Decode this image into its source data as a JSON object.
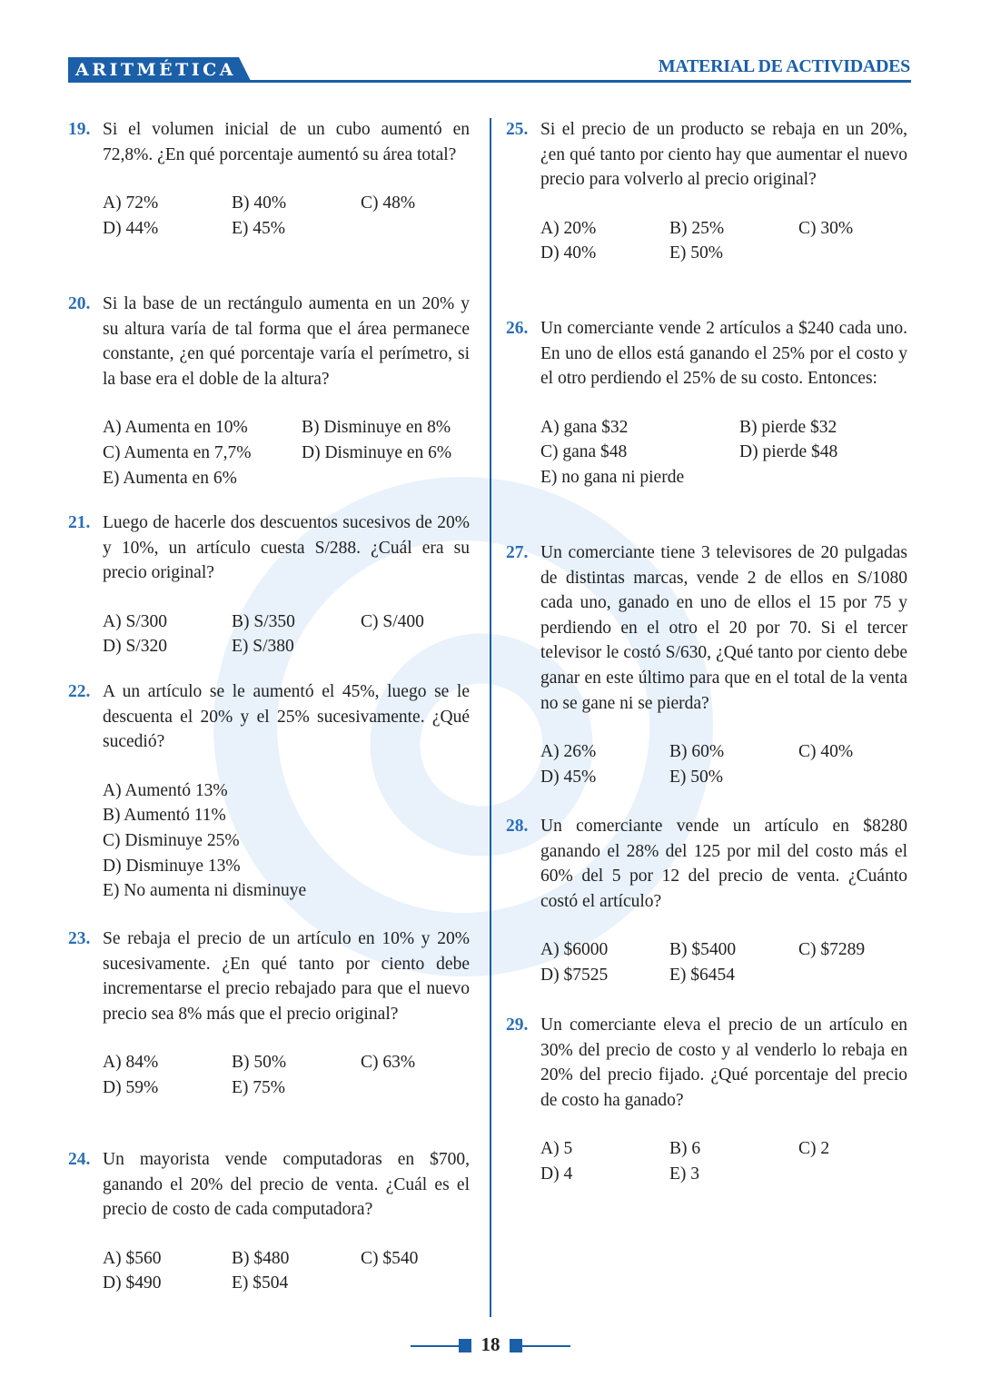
{
  "header": {
    "subject": "ARITMÉTICA",
    "section": "MATERIAL DE ACTIVIDADES"
  },
  "footer": {
    "page": "18"
  },
  "colors": {
    "accent": "#1b5fa8",
    "number": "#2a6fb5"
  },
  "left": [
    {
      "num": "19.",
      "text": "Si el volumen inicial de un cubo aumentó en 72,8%. ¿En qué porcentaje aumentó su área total?",
      "layout": "c3",
      "options": [
        "A) 72%",
        "B) 40%",
        "C) 48%",
        "D) 44%",
        "E) 45%"
      ]
    },
    {
      "num": "20.",
      "text": "Si la base de un rectángulo aumenta en un 20% y su altura varía de tal forma que el área permanece constante, ¿en qué porcentaje varía el perímetro, si la base era el doble de la altura?",
      "layout": "c2",
      "options": [
        "A) Aumenta en 10%",
        "B) Disminuye en 8%",
        "C) Aumenta en 7,7%",
        "D) Disminuye en 6%",
        "E) Aumenta en 6%"
      ]
    },
    {
      "num": "21.",
      "text": "Luego de hacerle dos descuentos sucesivos de 20% y 10%, un artículo cuesta S/288. ¿Cuál era su precio original?",
      "layout": "c3",
      "options": [
        "A) S/300",
        "B) S/350",
        "C) S/400",
        "D) S/320",
        "E) S/380"
      ]
    },
    {
      "num": "22.",
      "text": "A un artículo se le aumentó el 45%, luego se le descuenta el 20% y el 25% sucesivamente. ¿Qué sucedió?",
      "layout": "c1",
      "options": [
        "A) Aumentó 13%",
        "B) Aumentó 11%",
        "C) Disminuye 25%",
        "D) Disminuye 13%",
        "E) No aumenta ni disminuye"
      ]
    },
    {
      "num": "23.",
      "text": "Se rebaja el precio de un artículo en 10% y 20% sucesivamente. ¿En qué tanto por ciento debe incrementarse el precio rebajado para que el nuevo precio sea 8% más que el precio original?",
      "layout": "c3",
      "options": [
        "A) 84%",
        "B) 50%",
        "C) 63%",
        "D) 59%",
        "E) 75%"
      ]
    },
    {
      "num": "24.",
      "text": "Un mayorista vende computadoras en $700, ganando el 20% del precio de venta. ¿Cuál es el precio de costo de cada computadora?",
      "layout": "c3",
      "options": [
        "A) $560",
        "B) $480",
        "C) $540",
        "D) $490",
        "E) $504"
      ]
    }
  ],
  "right": [
    {
      "num": "25.",
      "text": "Si el precio de un producto se rebaja en un 20%, ¿en qué tanto por ciento hay que aumentar el nuevo precio para volverlo al precio original?",
      "layout": "c3",
      "options": [
        "A) 20%",
        "B) 25%",
        "C) 30%",
        "D) 40%",
        "E) 50%"
      ]
    },
    {
      "num": "26.",
      "text": "Un comerciante vende 2 artículos a $240 cada uno. En uno de ellos está ganando el 25% por el costo y el otro perdiendo el 25% de su costo. Entonces:",
      "layout": "c2",
      "options": [
        "A) gana $32",
        "B) pierde $32",
        "C) gana $48",
        "D) pierde $48",
        "E) no gana ni pierde"
      ]
    },
    {
      "num": "27.",
      "text": "Un comerciante tiene 3 televisores de 20 pulgadas de distintas marcas, vende 2 de ellos en S/1080 cada uno, ganado en uno de ellos el 15 por 75 y perdiendo en el otro el 20 por 70. Si el tercer televisor le costó S/630, ¿Qué tanto por ciento debe ganar en este último para que en el total de la venta no se gane ni se pierda?",
      "layout": "c3",
      "options": [
        "A) 26%",
        "B) 60%",
        "C) 40%",
        "D) 45%",
        "E) 50%"
      ]
    },
    {
      "num": "28.",
      "text": "Un comerciante vende un artículo en $8280 ganando el 28% del 125 por mil del costo más el 60% del 5 por 12 del precio de venta. ¿Cuánto costó el artículo?",
      "layout": "c3",
      "options": [
        "A) $6000",
        "B) $5400",
        "C) $7289",
        "D) $7525",
        "E) $6454"
      ]
    },
    {
      "num": "29.",
      "text": "Un comerciante eleva el precio de un artículo en 30% del precio de costo y al venderlo lo rebaja en 20% del precio fijado. ¿Qué porcentaje del precio de costo ha ganado?",
      "layout": "c3",
      "options": [
        "A) 5",
        "B) 6",
        "C) 2",
        "D) 4",
        "E) 3"
      ]
    }
  ]
}
